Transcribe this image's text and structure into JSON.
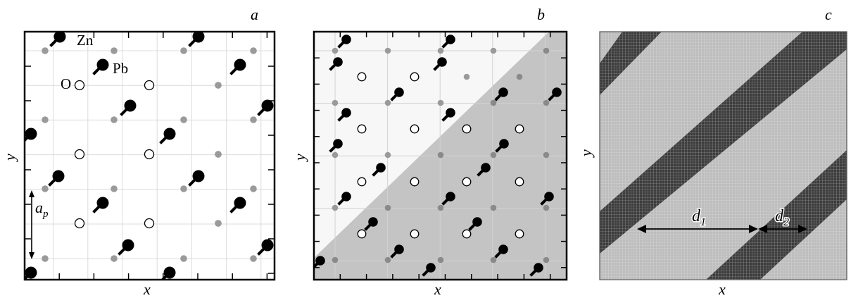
{
  "panels": [
    {
      "id": "a",
      "letter": "a",
      "xlabel": "x",
      "ylabel": "y",
      "atom_labels": {
        "zn": "Zn",
        "pb": "Pb",
        "o": "O"
      },
      "lattice_label": {
        "main": "a",
        "sub": "p"
      }
    },
    {
      "id": "b",
      "letter": "b",
      "xlabel": "x",
      "ylabel": "y"
    },
    {
      "id": "c",
      "letter": "c",
      "xlabel": "x",
      "ylabel": "y",
      "period_labels": [
        {
          "main": "d",
          "sub": "1"
        },
        {
          "main": "d",
          "sub": "2"
        }
      ]
    }
  ],
  "colors": {
    "frame": "#000000",
    "grid_a": "#d8d8d8",
    "zn_pb_atom": "#000000",
    "o_atom": "#ffffff",
    "gray_atom": "#9a9a9a",
    "domain_light": "#f7f7f7",
    "domain_dark": "#c4c4c4",
    "stripe_light": "#bdbdbd",
    "stripe_dark": "#3d3d3d",
    "mesh_line": "#ffffff"
  }
}
